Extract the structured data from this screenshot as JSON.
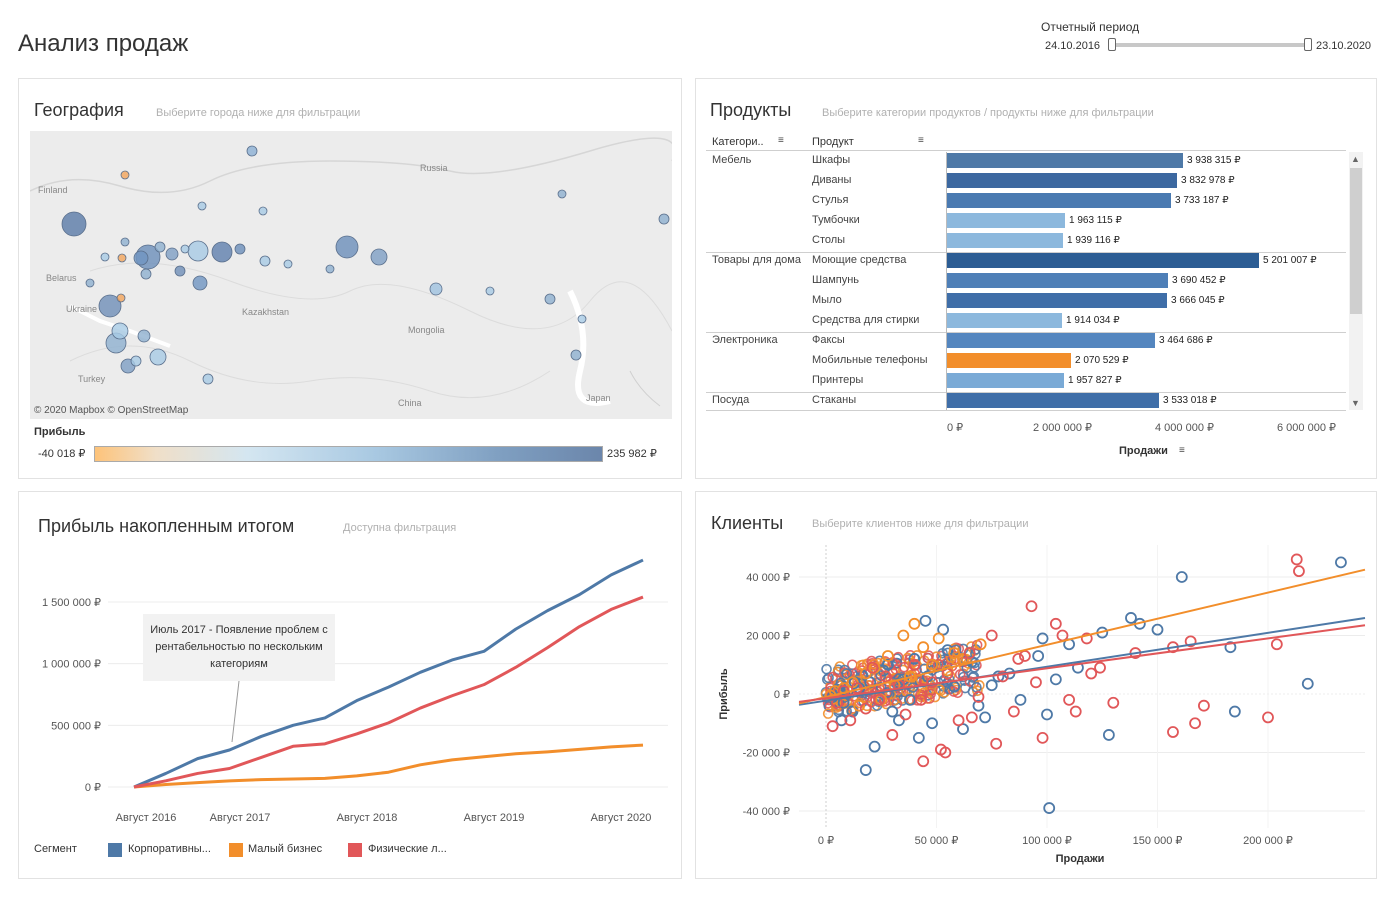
{
  "header": {
    "title": "Анализ продаж",
    "period_label": "Отчетный период",
    "period_start": "24.10.2016",
    "period_end": "23.10.2020"
  },
  "geography": {
    "title": "География",
    "hint": "Выберите города ниже для фильтрации",
    "labels": [
      "Russia",
      "Finland",
      "Belarus",
      "Ukraine",
      "Kazakhstan",
      "Mongolia",
      "Turkey",
      "China",
      "Japan"
    ],
    "attribution": "© 2020 Mapbox  © OpenStreetMap",
    "legend_title": "Прибыль",
    "legend_min": "-40 018 ₽",
    "legend_max": "235 982 ₽"
  },
  "products": {
    "title": "Продукты",
    "hint": "Выберите категории продуктов / продукты ниже для фильтрации",
    "col_category": "Категори..",
    "col_product": "Продукт",
    "categories": [
      {
        "name": "Мебель",
        "items": [
          {
            "name": "Шкафы",
            "value": 3938315,
            "label": "3 938 315 ₽",
            "color": "#4e79a7"
          },
          {
            "name": "Диваны",
            "value": 3832978,
            "label": "3 832 978 ₽",
            "color": "#3c68a0"
          },
          {
            "name": "Стулья",
            "value": 3733187,
            "label": "3 733 187 ₽",
            "color": "#4a7ab1"
          },
          {
            "name": "Тумбочки",
            "value": 1963115,
            "label": "1 963 115 ₽",
            "color": "#8cb8dd"
          },
          {
            "name": "Столы",
            "value": 1939116,
            "label": "1 939 116 ₽",
            "color": "#8cb8dd"
          }
        ]
      },
      {
        "name": "Товары для дома",
        "items": [
          {
            "name": "Моющие средства",
            "value": 5201007,
            "label": "5 201 007 ₽",
            "color": "#2c5d94"
          },
          {
            "name": "Шампунь",
            "value": 3690452,
            "label": "3 690 452 ₽",
            "color": "#4e7fb7"
          },
          {
            "name": "Мыло",
            "value": 3666045,
            "label": "3 666 045 ₽",
            "color": "#3f6ea8"
          },
          {
            "name": "Средства для стирки",
            "value": 1914034,
            "label": "1 914 034 ₽",
            "color": "#8cb8dd"
          }
        ]
      },
      {
        "name": "Электроника",
        "items": [
          {
            "name": "Факсы",
            "value": 3464686,
            "label": "3 464 686 ₽",
            "color": "#5486bf"
          },
          {
            "name": "Мобильные телефоны",
            "value": 2070529,
            "label": "2 070 529 ₽",
            "color": "#f28e2b"
          },
          {
            "name": "Принтеры",
            "value": 1957827,
            "label": "1 957 827 ₽",
            "color": "#7aaad6"
          }
        ]
      },
      {
        "name": "Посуда",
        "items": [
          {
            "name": "Стаканы",
            "value": 3533018,
            "label": "3 533 018 ₽",
            "color": "#3f6ea8"
          }
        ]
      }
    ],
    "x_ticks": [
      "0 ₽",
      "2 000 000 ₽",
      "4 000 000 ₽",
      "6 000 000 ₽"
    ],
    "x_title": "Продажи"
  },
  "profit": {
    "title": "Прибыль накопленным итогом",
    "hint": "Доступна фильтрация",
    "y_ticks": [
      "1 500 000 ₽",
      "1 000 000 ₽",
      "500 000 ₽",
      "0 ₽"
    ],
    "x_ticks": [
      "Август 2016",
      "Август 2017",
      "Август 2018",
      "Август 2019",
      "Август 2020"
    ],
    "callout": "Июль 2017 - Появление проблем с рентабельностью по нескольким категориям",
    "legend_title": "Сегмент",
    "legend": [
      {
        "label": "Корпоративны...",
        "color": "#4e79a7"
      },
      {
        "label": "Малый бизнес",
        "color": "#f28e2b"
      },
      {
        "label": "Физические л...",
        "color": "#e15759"
      }
    ]
  },
  "chart_data": [
    {
      "type": "line",
      "title": "Прибыль накопленным итогом",
      "ylabel": "",
      "xlabel": "",
      "x": [
        "2016-10",
        "2017-01",
        "2017-04",
        "2017-07",
        "2017-10",
        "2018-01",
        "2018-04",
        "2018-07",
        "2018-10",
        "2019-01",
        "2019-04",
        "2019-07",
        "2019-10",
        "2020-01",
        "2020-04",
        "2020-07",
        "2020-10"
      ],
      "ylim": [
        0,
        1900000
      ],
      "series": [
        {
          "name": "Корпоративны...",
          "values": [
            0,
            110000,
            230000,
            300000,
            410000,
            500000,
            560000,
            700000,
            810000,
            930000,
            1030000,
            1100000,
            1280000,
            1430000,
            1560000,
            1720000,
            1840000
          ]
        },
        {
          "name": "Малый бизнес",
          "values": [
            0,
            20000,
            35000,
            50000,
            60000,
            65000,
            70000,
            90000,
            120000,
            180000,
            220000,
            245000,
            270000,
            285000,
            305000,
            325000,
            340000
          ]
        },
        {
          "name": "Физические л...",
          "values": [
            0,
            50000,
            110000,
            150000,
            240000,
            330000,
            350000,
            430000,
            520000,
            640000,
            740000,
            830000,
            970000,
            1130000,
            1300000,
            1440000,
            1540000
          ]
        }
      ]
    },
    {
      "type": "scatter",
      "title": "Клиенты",
      "xlabel": "Продажи",
      "ylabel": "Прибыль",
      "xlim": [
        0,
        250000
      ],
      "ylim": [
        -45000,
        45000
      ],
      "x_ticks": [
        "0 ₽",
        "50 000 ₽",
        "100 000 ₽",
        "150 000 ₽",
        "200 000 ₽"
      ],
      "y_ticks": [
        "40 000 ₽",
        "20 000 ₽",
        "0 ₽",
        "-20 000 ₽",
        "-40 000 ₽"
      ],
      "trend_lines": [
        {
          "name": "Корпоративны...",
          "color": "#4e79a7",
          "y_at_0": -2500,
          "y_at_max": 26000
        },
        {
          "name": "Малый бизнес",
          "color": "#f28e2b",
          "y_at_0": -2000,
          "y_at_max": 42500
        },
        {
          "name": "Физические л...",
          "color": "#e15759",
          "y_at_0": -1500,
          "y_at_max": 23500
        }
      ],
      "series": [
        {
          "name": "Корпоративны...",
          "color": "#4e79a7",
          "points": [
            [
              161000,
              40000
            ],
            [
              233000,
              45000
            ],
            [
              218000,
              3500
            ],
            [
              185000,
              -6000
            ],
            [
              183000,
              16000
            ],
            [
              142000,
              24000
            ],
            [
              138000,
              26000
            ],
            [
              125000,
              21000
            ],
            [
              110000,
              17000
            ],
            [
              98000,
              19000
            ],
            [
              96000,
              13000
            ],
            [
              83000,
              7000
            ],
            [
              75000,
              3000
            ],
            [
              69000,
              -4000
            ],
            [
              62000,
              -12000
            ],
            [
              55000,
              15000
            ],
            [
              53000,
              22000
            ],
            [
              48000,
              -10000
            ],
            [
              45000,
              25000
            ],
            [
              42000,
              -15000
            ],
            [
              40000,
              12000
            ],
            [
              35000,
              5000
            ],
            [
              30000,
              -6000
            ],
            [
              26000,
              8000
            ],
            [
              22000,
              -18000
            ],
            [
              20000,
              4000
            ],
            [
              18000,
              -26000
            ],
            [
              15000,
              2000
            ],
            [
              12000,
              -6000
            ],
            [
              10000,
              1000
            ],
            [
              8000,
              -3000
            ],
            [
              5000,
              1500
            ],
            [
              3000,
              -1000
            ],
            [
              101000,
              -39000
            ],
            [
              100000,
              -7000
            ],
            [
              128000,
              -14000
            ],
            [
              104000,
              5000
            ],
            [
              150000,
              22000
            ],
            [
              114000,
              9000
            ],
            [
              46000,
              6000
            ],
            [
              38000,
              -2000
            ],
            [
              28000,
              10000
            ],
            [
              33000,
              -9000
            ],
            [
              58000,
              2500
            ],
            [
              66000,
              11000
            ],
            [
              72000,
              -8000
            ],
            [
              78000,
              6000
            ],
            [
              88000,
              -2000
            ],
            [
              13000,
              4000
            ],
            [
              7000,
              -9000
            ]
          ]
        },
        {
          "name": "Малый бизнес",
          "color": "#f28e2b",
          "points": [
            [
              40000,
              24000
            ],
            [
              51000,
              19000
            ],
            [
              44000,
              16000
            ],
            [
              58000,
              14000
            ],
            [
              62000,
              12000
            ],
            [
              35000,
              20000
            ],
            [
              28000,
              13000
            ],
            [
              22000,
              9000
            ],
            [
              18000,
              7000
            ],
            [
              12000,
              4000
            ],
            [
              8000,
              2000
            ],
            [
              4000,
              1000
            ],
            [
              2000,
              -500
            ],
            [
              48000,
              10000
            ],
            [
              55000,
              8000
            ],
            [
              38000,
              6000
            ],
            [
              31000,
              3000
            ],
            [
              25000,
              -2000
            ],
            [
              15000,
              -4000
            ],
            [
              70000,
              17000
            ]
          ]
        },
        {
          "name": "Физические л...",
          "color": "#e15759",
          "points": [
            [
              213000,
              46000
            ],
            [
              214000,
              42000
            ],
            [
              204000,
              17000
            ],
            [
              167000,
              -10000
            ],
            [
              157000,
              16000
            ],
            [
              171000,
              -4000
            ],
            [
              130000,
              -3000
            ],
            [
              124000,
              9000
            ],
            [
              113000,
              -6000
            ],
            [
              110000,
              -2000
            ],
            [
              107000,
              20000
            ],
            [
              104000,
              24000
            ],
            [
              98000,
              -15000
            ],
            [
              93000,
              30000
            ],
            [
              90000,
              13000
            ],
            [
              85000,
              -6000
            ],
            [
              80000,
              6000
            ],
            [
              75000,
              20000
            ],
            [
              69000,
              -1000
            ],
            [
              65000,
              14000
            ],
            [
              60000,
              -9000
            ],
            [
              55000,
              7000
            ],
            [
              52000,
              -19000
            ],
            [
              48000,
              4000
            ],
            [
              43000,
              -2000
            ],
            [
              40000,
              10000
            ],
            [
              36000,
              -7000
            ],
            [
              33000,
              3000
            ],
            [
              30000,
              -14000
            ],
            [
              27000,
              6000
            ],
            [
              24000,
              -2000
            ],
            [
              21000,
              9000
            ],
            [
              18000,
              -5000
            ],
            [
              14000,
              2000
            ],
            [
              11000,
              -9000
            ],
            [
              8000,
              1000
            ],
            [
              5000,
              -3000
            ],
            [
              3000,
              -11000
            ],
            [
              157000,
              -13000
            ],
            [
              165000,
              18000
            ],
            [
              200000,
              -8000
            ],
            [
              120000,
              7000
            ],
            [
              140000,
              14000
            ],
            [
              118000,
              19000
            ],
            [
              77000,
              -17000
            ],
            [
              44000,
              -23000
            ],
            [
              54000,
              -20000
            ],
            [
              66000,
              -8000
            ],
            [
              87000,
              12000
            ],
            [
              95000,
              4000
            ]
          ]
        }
      ]
    }
  ],
  "customers": {
    "title": "Клиенты",
    "hint": "Выберите клиентов ниже для фильтрации"
  }
}
